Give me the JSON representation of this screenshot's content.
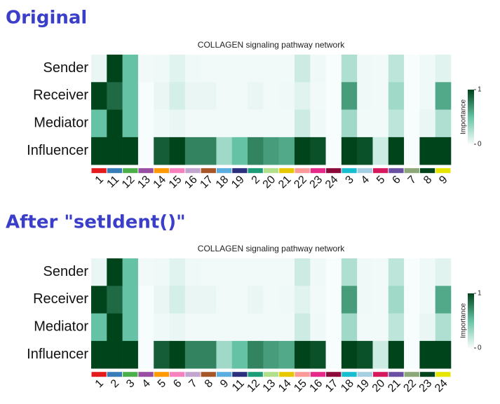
{
  "headings": [
    "Original",
    "After \"setIdent()\""
  ],
  "chart_data": [
    {
      "type": "heatmap",
      "title": "COLLAGEN signaling pathway network",
      "categories": [
        "1",
        "11",
        "12",
        "13",
        "14",
        "15",
        "16",
        "17",
        "18",
        "19",
        "2",
        "20",
        "21",
        "22",
        "23",
        "24",
        "3",
        "4",
        "5",
        "6",
        "7",
        "8",
        "9"
      ],
      "column_colors": [
        "#e41a1c",
        "#377eb8",
        "#4daf4a",
        "#984ea3",
        "#ff9900",
        "#f781bf",
        "#c2a5cf",
        "#a65628",
        "#5aaee0",
        "#2b2f7e",
        "#1b9e77",
        "#b2df8a",
        "#e6c700",
        "#fb9a99",
        "#e7298a",
        "#8b0a3a",
        "#17becf",
        "#a6cee3",
        "#d6185d",
        "#6a51a3",
        "#8da878",
        "#00441b",
        "#e6e600"
      ],
      "series": [
        {
          "name": "Sender",
          "values": [
            0.05,
            1.0,
            0.5,
            0.02,
            0.03,
            0.08,
            0.03,
            0.02,
            0.02,
            0.02,
            0.02,
            0.02,
            0.02,
            0.15,
            0.03,
            0,
            0.25,
            0.03,
            0.02,
            0.2,
            0,
            0.03,
            0.08
          ]
        },
        {
          "name": "Receiver",
          "values": [
            1.0,
            0.85,
            0.5,
            0,
            0.05,
            0.12,
            0.05,
            0.05,
            0.02,
            0.02,
            0.05,
            0.02,
            0.03,
            0.08,
            0.02,
            0,
            0.65,
            0.03,
            0.02,
            0.3,
            0,
            0.03,
            0.6
          ]
        },
        {
          "name": "Mediator",
          "values": [
            0.5,
            1.0,
            0.5,
            0,
            0.03,
            0.05,
            0.02,
            0.02,
            0.02,
            0.02,
            0.02,
            0.02,
            0.02,
            0.15,
            0.03,
            0,
            0.3,
            0.02,
            0.02,
            0.2,
            0,
            0.05,
            0.25
          ]
        },
        {
          "name": "Influencer",
          "values": [
            1.0,
            1.0,
            1.0,
            0,
            0.9,
            1.0,
            0.75,
            0.75,
            0.3,
            0.5,
            0.75,
            0.65,
            0.6,
            1.0,
            0.95,
            0,
            1.0,
            0.95,
            0.15,
            1.0,
            0,
            1.0,
            1.0
          ]
        }
      ],
      "colorbar_label": "Importance",
      "clim": [
        0,
        1
      ],
      "cticks": [
        0,
        1
      ],
      "colormap": [
        "#f7fcfd",
        "#66c2a4",
        "#00441b"
      ]
    },
    {
      "type": "heatmap",
      "title": "COLLAGEN signaling pathway network",
      "categories": [
        "1",
        "2",
        "3",
        "4",
        "5",
        "6",
        "7",
        "8",
        "9",
        "11",
        "12",
        "13",
        "14",
        "15",
        "16",
        "17",
        "18",
        "19",
        "20",
        "21",
        "22",
        "23",
        "24"
      ],
      "column_colors": [
        "#e41a1c",
        "#377eb8",
        "#4daf4a",
        "#984ea3",
        "#ff9900",
        "#f781bf",
        "#c2a5cf",
        "#a65628",
        "#5aaee0",
        "#2b2f7e",
        "#1b9e77",
        "#b2df8a",
        "#e6c700",
        "#fb9a99",
        "#e7298a",
        "#8b0a3a",
        "#17becf",
        "#a6cee3",
        "#d6185d",
        "#6a51a3",
        "#8da878",
        "#00441b",
        "#e6e600"
      ],
      "series": [
        {
          "name": "Sender",
          "values": [
            0.05,
            1.0,
            0.5,
            0.02,
            0.03,
            0.08,
            0.03,
            0.02,
            0.02,
            0.02,
            0.02,
            0.02,
            0.02,
            0.15,
            0.03,
            0,
            0.25,
            0.03,
            0.02,
            0.2,
            0,
            0.03,
            0.08
          ]
        },
        {
          "name": "Receiver",
          "values": [
            1.0,
            0.85,
            0.5,
            0,
            0.05,
            0.12,
            0.05,
            0.05,
            0.02,
            0.02,
            0.05,
            0.02,
            0.03,
            0.08,
            0.02,
            0,
            0.65,
            0.03,
            0.02,
            0.3,
            0,
            0.03,
            0.6
          ]
        },
        {
          "name": "Mediator",
          "values": [
            0.5,
            1.0,
            0.5,
            0,
            0.03,
            0.05,
            0.02,
            0.02,
            0.02,
            0.02,
            0.02,
            0.02,
            0.02,
            0.15,
            0.03,
            0,
            0.3,
            0.02,
            0.02,
            0.2,
            0,
            0.05,
            0.25
          ]
        },
        {
          "name": "Influencer",
          "values": [
            1.0,
            1.0,
            1.0,
            0,
            0.9,
            1.0,
            0.75,
            0.75,
            0.3,
            0.5,
            0.75,
            0.65,
            0.6,
            1.0,
            0.95,
            0,
            1.0,
            0.95,
            0.15,
            1.0,
            0,
            1.0,
            1.0
          ]
        }
      ],
      "colorbar_label": "Importance",
      "clim": [
        0,
        1
      ],
      "cticks": [
        0,
        1
      ],
      "colormap": [
        "#f7fcfd",
        "#66c2a4",
        "#00441b"
      ]
    }
  ]
}
